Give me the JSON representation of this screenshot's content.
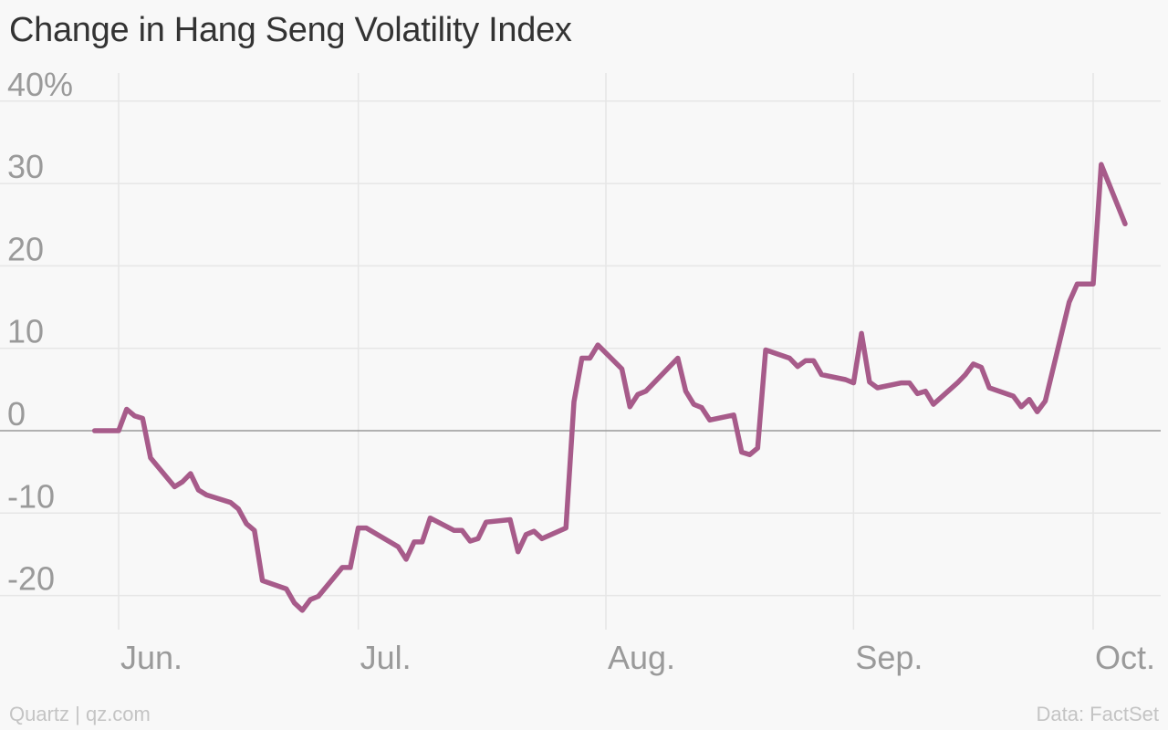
{
  "title": "Change in Hang Seng Volatility Index",
  "footer": {
    "credit": "Quartz | qz.com",
    "source": "Data: FactSet"
  },
  "colors": {
    "line": "#a75b8a",
    "grid": "#e6e6e6",
    "zero": "#999999",
    "tick_text": "#9a9a9a",
    "background": "#f8f8f8"
  },
  "chart_data": {
    "type": "line",
    "title": "Change in Hang Seng Volatility Index",
    "xlabel": "",
    "ylabel": "",
    "y_ticks": [
      {
        "value": 40,
        "label": "40%"
      },
      {
        "value": 30,
        "label": "30"
      },
      {
        "value": 20,
        "label": "20"
      },
      {
        "value": 10,
        "label": "10"
      },
      {
        "value": 0,
        "label": "0"
      },
      {
        "value": -10,
        "label": "-10"
      },
      {
        "value": -20,
        "label": "-20"
      }
    ],
    "x_ticks": [
      {
        "date": "2015-06-01",
        "label": "Jun."
      },
      {
        "date": "2015-07-01",
        "label": "Jul."
      },
      {
        "date": "2015-08-01",
        "label": "Aug."
      },
      {
        "date": "2015-09-01",
        "label": "Sep."
      },
      {
        "date": "2015-10-01",
        "label": "Oct."
      }
    ],
    "ylim": [
      -23,
      42
    ],
    "xlim": [
      "2015-05-24",
      "2015-10-08"
    ],
    "grid": true,
    "series": [
      {
        "values": [
          [
            "2015-05-29",
            0
          ],
          [
            "2015-06-01",
            0
          ],
          [
            "2015-06-02",
            2.6
          ],
          [
            "2015-06-03",
            1.8
          ],
          [
            "2015-06-04",
            1.5
          ],
          [
            "2015-06-05",
            -3.3
          ],
          [
            "2015-06-08",
            -6.8
          ],
          [
            "2015-06-09",
            -6.2
          ],
          [
            "2015-06-10",
            -5.2
          ],
          [
            "2015-06-11",
            -7.2
          ],
          [
            "2015-06-12",
            -7.8
          ],
          [
            "2015-06-15",
            -8.7
          ],
          [
            "2015-06-16",
            -9.5
          ],
          [
            "2015-06-17",
            -11.3
          ],
          [
            "2015-06-18",
            -12.1
          ],
          [
            "2015-06-19",
            -18.2
          ],
          [
            "2015-06-22",
            -19.2
          ],
          [
            "2015-06-23",
            -20.9
          ],
          [
            "2015-06-24",
            -21.8
          ],
          [
            "2015-06-25",
            -20.5
          ],
          [
            "2015-06-26",
            -20.1
          ],
          [
            "2015-06-29",
            -16.6
          ],
          [
            "2015-06-30",
            -16.6
          ],
          [
            "2015-07-01",
            -11.8
          ],
          [
            "2015-07-02",
            -11.8
          ],
          [
            "2015-07-06",
            -14.1
          ],
          [
            "2015-07-07",
            -15.6
          ],
          [
            "2015-07-08",
            -13.5
          ],
          [
            "2015-07-09",
            -13.5
          ],
          [
            "2015-07-10",
            -10.6
          ],
          [
            "2015-07-13",
            -12.1
          ],
          [
            "2015-07-14",
            -12.1
          ],
          [
            "2015-07-15",
            -13.4
          ],
          [
            "2015-07-16",
            -13.1
          ],
          [
            "2015-07-17",
            -11.1
          ],
          [
            "2015-07-20",
            -10.8
          ],
          [
            "2015-07-21",
            -14.7
          ],
          [
            "2015-07-22",
            -12.6
          ],
          [
            "2015-07-23",
            -12.2
          ],
          [
            "2015-07-24",
            -13.1
          ],
          [
            "2015-07-27",
            -11.8
          ],
          [
            "2015-07-28",
            3.5
          ],
          [
            "2015-07-29",
            8.8
          ],
          [
            "2015-07-30",
            8.8
          ],
          [
            "2015-07-31",
            10.4
          ],
          [
            "2015-08-03",
            7.5
          ],
          [
            "2015-08-04",
            2.9
          ],
          [
            "2015-08-05",
            4.4
          ],
          [
            "2015-08-06",
            4.8
          ],
          [
            "2015-08-10",
            8.8
          ],
          [
            "2015-08-11",
            4.8
          ],
          [
            "2015-08-12",
            3.2
          ],
          [
            "2015-08-13",
            2.8
          ],
          [
            "2015-08-14",
            1.3
          ],
          [
            "2015-08-17",
            1.9
          ],
          [
            "2015-08-18",
            -2.6
          ],
          [
            "2015-08-19",
            -2.9
          ],
          [
            "2015-08-20",
            -2.1
          ],
          [
            "2015-08-21",
            9.8
          ],
          [
            "2015-08-24",
            8.8
          ],
          [
            "2015-08-25",
            7.8
          ],
          [
            "2015-08-26",
            8.5
          ],
          [
            "2015-08-27",
            8.5
          ],
          [
            "2015-08-28",
            6.8
          ],
          [
            "2015-08-31",
            6.2
          ],
          [
            "2015-09-01",
            5.8
          ],
          [
            "2015-09-02",
            11.8
          ],
          [
            "2015-09-03",
            5.9
          ],
          [
            "2015-09-04",
            5.2
          ],
          [
            "2015-09-07",
            5.8
          ],
          [
            "2015-09-08",
            5.8
          ],
          [
            "2015-09-09",
            4.5
          ],
          [
            "2015-09-10",
            4.8
          ],
          [
            "2015-09-11",
            3.2
          ],
          [
            "2015-09-14",
            5.8
          ],
          [
            "2015-09-15",
            6.8
          ],
          [
            "2015-09-16",
            8.1
          ],
          [
            "2015-09-17",
            7.7
          ],
          [
            "2015-09-18",
            5.2
          ],
          [
            "2015-09-21",
            4.2
          ],
          [
            "2015-09-22",
            2.9
          ],
          [
            "2015-09-23",
            3.8
          ],
          [
            "2015-09-24",
            2.3
          ],
          [
            "2015-09-25",
            3.6
          ],
          [
            "2015-09-28",
            15.6
          ],
          [
            "2015-09-29",
            17.8
          ],
          [
            "2015-09-30",
            17.8
          ],
          [
            "2015-10-01",
            17.8
          ],
          [
            "2015-10-02",
            32.3
          ],
          [
            "2015-10-05",
            25.1
          ]
        ]
      }
    ]
  }
}
